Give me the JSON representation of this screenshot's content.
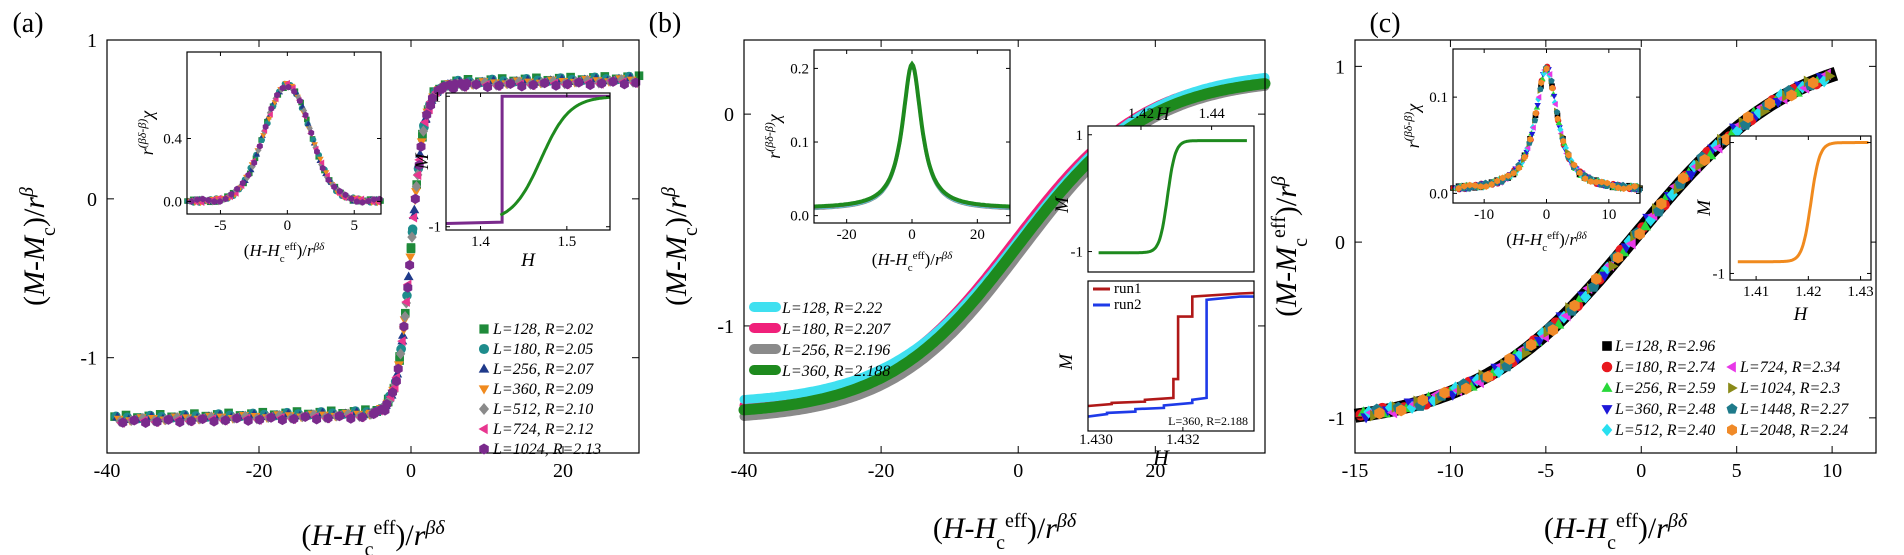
{
  "chart_data": [
    {
      "panel": "a",
      "panel_label": "(a)",
      "type": "scatter",
      "title": "",
      "xlabel": "(H-Hceff)/rβδ",
      "ylabel": "(M-Mc)/rβ",
      "xlim": [
        -40,
        30
      ],
      "ylim": [
        -1.6,
        1
      ],
      "xticks": [
        -40,
        -20,
        0,
        20
      ],
      "yticks": [
        -1,
        0,
        1
      ],
      "xtick_labels": [
        "-40",
        "-20",
        "0",
        "20"
      ],
      "ytick_labels": [
        "-1",
        "0",
        "1"
      ],
      "collapse": {
        "x0": 0,
        "k": 1.1,
        "low": -1.35,
        "high": 0.72
      },
      "series": [
        {
          "name": "L=128, R=2.02",
          "L": "L=128",
          "R": "R=2.02",
          "color": "#1f8a3a",
          "marker": "square"
        },
        {
          "name": "L=180, R=2.05",
          "L": "L=180",
          "R": "R=2.05",
          "color": "#1e8c8c",
          "marker": "circle"
        },
        {
          "name": "L=256, R=2.07",
          "L": "L=256",
          "R": "R=2.07",
          "color": "#1f3a8a",
          "marker": "triangle-up"
        },
        {
          "name": "L=360, R=2.09",
          "L": "L=360",
          "R": "R=2.09",
          "color": "#f08a1e",
          "marker": "triangle-down"
        },
        {
          "name": "L=512, R=2.10",
          "L": "L=512",
          "R": "R=2.10",
          "color": "#8a8a8a",
          "marker": "diamond"
        },
        {
          "name": "L=724, R=2.12",
          "L": "L=724",
          "R": "R=2.12",
          "color": "#e8368f",
          "marker": "triangle-left"
        },
        {
          "name": "L=1024, R=2.13",
          "L": "L=1024",
          "R": "R=2.13",
          "color": "#7a2a8c",
          "marker": "hexagon"
        }
      ],
      "insets": [
        {
          "name": "scaled-susceptibility",
          "xlabel": "(H-Hceff)/rβδ",
          "ylabel": "r(βδ-β)χ",
          "xlim": [
            -7.5,
            7
          ],
          "ylim": [
            -0.08,
            0.95
          ],
          "xticks": [
            -5,
            0,
            5
          ],
          "yticks": [
            0,
            0.4
          ],
          "xtick_labels": [
            "-5",
            "0",
            "5"
          ],
          "ytick_labels": [
            "0.0",
            "0.4"
          ],
          "peak": {
            "x": 0,
            "height": 0.74,
            "width": 1.7
          }
        },
        {
          "name": "hysteresis-loop",
          "xlabel": "H",
          "ylabel": "M",
          "xlim": [
            1.36,
            1.55
          ],
          "ylim": [
            -1.05,
            1.05
          ],
          "xticks": [
            1.4,
            1.5
          ],
          "yticks": [
            -1,
            1
          ],
          "xtick_labels": [
            "1.4",
            "1.5"
          ],
          "ytick_labels": [
            "-1",
            "1"
          ],
          "curves": [
            {
              "name": "step-curve",
              "color": "#7a2a8c",
              "jump_at": 1.425,
              "low": -0.95,
              "high": 1.0
            },
            {
              "name": "smooth-curve",
              "color": "#1e8a1e",
              "x0": 1.47,
              "k": 60,
              "low": -0.93,
              "high": 1.0
            }
          ]
        }
      ]
    },
    {
      "panel": "b",
      "panel_label": "(b)",
      "type": "line",
      "title": "",
      "xlabel": "(H-Hceff)/rβδ",
      "ylabel": "(M-Mc)/rβ",
      "xlim": [
        -40,
        36
      ],
      "ylim": [
        -1.6,
        0.35
      ],
      "xticks": [
        -40,
        -20,
        0,
        20
      ],
      "yticks": [
        -1,
        0
      ],
      "xtick_labels": [
        "-40",
        "-20",
        "0",
        "20"
      ],
      "ytick_labels": [
        "-1",
        "0"
      ],
      "series": [
        {
          "name": "L=128, R=2.22",
          "L": "L=128",
          "R": "R=2.22",
          "color": "#3fe0f0",
          "low": -1.37,
          "high": 0.21,
          "k": 0.105,
          "x0": 0.4
        },
        {
          "name": "L=180, R=2.207",
          "L": "L=180",
          "R": "R=2.207",
          "color": "#f0207a",
          "low": -1.4,
          "high": 0.2,
          "k": 0.105,
          "x0": -0.6
        },
        {
          "name": "L=256, R=2.196",
          "L": "L=256",
          "R": "R=2.196",
          "color": "#8a8a8a",
          "low": -1.45,
          "high": 0.17,
          "k": 0.105,
          "x0": 0.6
        },
        {
          "name": "L=360, R=2.188",
          "L": "L=360",
          "R": "R=2.188",
          "color": "#1e8a1e",
          "low": -1.42,
          "high": 0.18,
          "k": 0.105,
          "x0": 0
        }
      ],
      "insets": [
        {
          "name": "scaled-susceptibility",
          "xlabel": "(H-Hceff)/rβδ",
          "ylabel": "r(βδ-β)χ",
          "xlim": [
            -30,
            30
          ],
          "ylim": [
            -0.01,
            0.225
          ],
          "xticks": [
            -20,
            0,
            20
          ],
          "yticks": [
            0,
            0.1,
            0.2
          ],
          "xtick_labels": [
            "-20",
            "0",
            "20"
          ],
          "ytick_labels": [
            "0.0",
            "0.1",
            "0.2"
          ],
          "peak": {
            "x": 0,
            "height": 0.205,
            "width": 3.5
          }
        },
        {
          "name": "magnetization-curve",
          "xlabel": "H",
          "ylabel": "M",
          "xlim": [
            1.405,
            1.452
          ],
          "ylim": [
            -1.35,
            1.15
          ],
          "xticks": [
            1.42,
            1.44
          ],
          "yticks": [
            -1,
            1
          ],
          "xtick_labels": [
            "1.42",
            "1.44"
          ],
          "ytick_labels": [
            "-1",
            "1"
          ],
          "curves": [
            {
              "name": "single-curve",
              "color": "#1e8a1e",
              "x0": 1.4275,
              "k": 900,
              "low": -1.02,
              "high": 0.9
            }
          ]
        },
        {
          "name": "two-runs",
          "xlabel": "H",
          "ylabel": "M",
          "xlim": [
            1.43,
            1.4335
          ],
          "ylim": [
            -1.25,
            1.15
          ],
          "xticks": [
            1.43,
            1.432
          ],
          "yticks": [],
          "xtick_labels": [
            "1.430",
            "1.432"
          ],
          "ytick_labels": [],
          "annotation": "L=360, R=2.188",
          "runs": [
            {
              "name": "run1",
              "color": "#b01818"
            },
            {
              "name": "run2",
              "color": "#1e3ae8"
            }
          ]
        }
      ]
    },
    {
      "panel": "c",
      "panel_label": "(c)",
      "type": "scatter",
      "title": "",
      "xlabel": "(H-Hceff)/rβδ",
      "ylabel": "(M-Mceff)/rβ",
      "xlim": [
        -15,
        12.3
      ],
      "ylim": [
        -1.2,
        1.15
      ],
      "xticks": [
        -15,
        -10,
        -5,
        0,
        5,
        10
      ],
      "yticks": [
        -1,
        0,
        1
      ],
      "xtick_labels": [
        "-15",
        "-10",
        "-5",
        "0",
        "5",
        "10"
      ],
      "ytick_labels": [
        "-1",
        "0",
        "1"
      ],
      "collapse": {
        "x0": -0.3,
        "k": 0.24,
        "low": -1.05,
        "high": 1.12
      },
      "series": [
        {
          "name": "L=128, R=2.96",
          "L": "L=128",
          "R": "R=2.96",
          "color": "#000000",
          "marker": "square"
        },
        {
          "name": "L=180, R=2.74",
          "L": "L=180",
          "R": "R=2.74",
          "color": "#e8181e",
          "marker": "circle"
        },
        {
          "name": "L=256, R=2.59",
          "L": "L=256",
          "R": "R=2.59",
          "color": "#28d83a",
          "marker": "triangle-up"
        },
        {
          "name": "L=360, R=2.48",
          "L": "L=360",
          "R": "R=2.48",
          "color": "#1e18d8",
          "marker": "triangle-down"
        },
        {
          "name": "L=512, R=2.40",
          "L": "L=512",
          "R": "R=2.40",
          "color": "#28e0f0",
          "marker": "diamond"
        },
        {
          "name": "L=724, R=2.34",
          "L": "L=724",
          "R": "R=2.34",
          "color": "#e838e8",
          "marker": "triangle-left"
        },
        {
          "name": "L=1024, R=2.3",
          "L": "L=1024",
          "R": "R=2.3",
          "color": "#8a8a18",
          "marker": "triangle-right"
        },
        {
          "name": "L=1448, R=2.27",
          "L": "L=1448",
          "R": "R=2.27",
          "color": "#1e7a8a",
          "marker": "pentagon"
        },
        {
          "name": "L=2048, R=2.24",
          "L": "L=2048",
          "R": "R=2.24",
          "color": "#f08a28",
          "marker": "hexagon"
        }
      ],
      "insets": [
        {
          "name": "scaled-susceptibility",
          "xlabel": "(H-Hceff)/rβδ",
          "ylabel": "r(βδ-β)χ",
          "xlim": [
            -15,
            15
          ],
          "ylim": [
            -0.01,
            0.15
          ],
          "xticks": [
            -10,
            0,
            10
          ],
          "yticks": [
            0,
            0.1
          ],
          "xtick_labels": [
            "-10",
            "0",
            "10"
          ],
          "ytick_labels": [
            "0.0",
            "0.1"
          ],
          "peak": {
            "x": 0,
            "height": 0.13,
            "width": 2.2
          }
        },
        {
          "name": "magnetization-curve",
          "xlabel": "H",
          "ylabel": "M",
          "xlim": [
            1.405,
            1.432
          ],
          "ylim": [
            -1.1,
            1.1
          ],
          "xticks": [
            1.41,
            1.42,
            1.43
          ],
          "yticks": [
            -1,
            1
          ],
          "xtick_labels": [
            "1.41",
            "1.42",
            "1.43"
          ],
          "ytick_labels": [
            "-1",
            "1"
          ],
          "curves": [
            {
              "name": "single-curve",
              "color": "#f08a1e",
              "x0": 1.4205,
              "k": 1200,
              "low": -0.82,
              "high": 1.0
            }
          ]
        }
      ]
    }
  ]
}
